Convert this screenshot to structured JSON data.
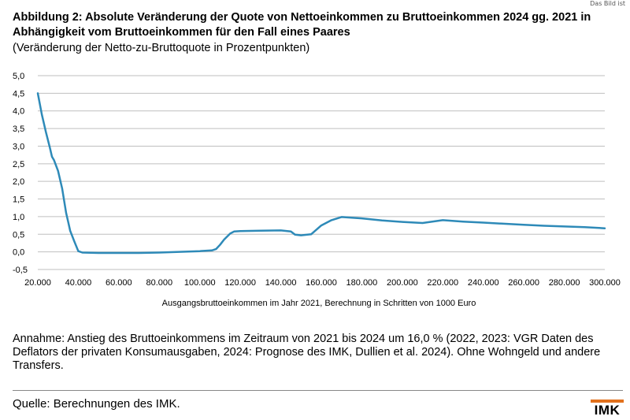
{
  "corner_mark": "Das Bild ist",
  "header": {
    "title": "Abbildung 2: Absolute Veränderung der Quote von Nettoeinkommen zu Bruttoeinkommen 2024 gg. 2021 in Abhängigkeit vom Bruttoeinkommen für den Fall eines Paares",
    "subtitle": "(Veränderung der Netto-zu-Bruttoquote in Prozentpunkten)"
  },
  "note": "Annahme: Anstieg des Bruttoeinkommens im Zeitraum von 2021 bis 2024 um 16,0 % (2022, 2023: VGR Daten des Deflators der privaten Konsumausgaben, 2024: Prognose des IMK, Dullien et al. 2024). Ohne Wohngeld und andere Transfers.",
  "source": "Quelle: Berechnungen des IMK.",
  "logo": {
    "text": "IMK",
    "accent_color": "#e2711d"
  },
  "chart_data": {
    "type": "line",
    "title": "",
    "xlabel": "Ausgangsbruttoeinkommen im Jahr 2021, Berechnung in Schritten von 1000 Euro",
    "ylabel": "",
    "xlim": [
      20000,
      300000
    ],
    "ylim": [
      -0.5,
      5.0
    ],
    "grid": "horizontal",
    "legend": "none",
    "line_color": "#2e8ab8",
    "y_ticks": [
      5.0,
      4.5,
      4.0,
      3.5,
      3.0,
      2.5,
      2.0,
      1.5,
      1.0,
      0.5,
      0.0,
      -0.5
    ],
    "y_tick_labels": [
      "5,0",
      "4,5",
      "4,0",
      "3,5",
      "3,0",
      "2,5",
      "2,0",
      "1,5",
      "1,0",
      "0,5",
      "0,0",
      "-0,5"
    ],
    "x_ticks": [
      20000,
      40000,
      60000,
      80000,
      100000,
      120000,
      140000,
      160000,
      180000,
      200000,
      220000,
      240000,
      260000,
      280000,
      300000
    ],
    "x_tick_labels": [
      "20.000",
      "40.000",
      "60.000",
      "80.000",
      "100.000",
      "120.000",
      "140.000",
      "160.000",
      "180.000",
      "200.000",
      "220.000",
      "240.000",
      "260.000",
      "280.000",
      "300.000"
    ],
    "series": [
      {
        "x": [
          20000,
          22000,
          24000,
          26000,
          27000,
          28000,
          30000,
          32000,
          34000,
          35000,
          36000,
          38000,
          40000,
          42000,
          50000,
          60000,
          70000,
          80000,
          90000,
          100000,
          106000,
          108000,
          110000,
          112000,
          115000,
          117000,
          120000,
          130000,
          140000,
          145000,
          147000,
          150000,
          155000,
          160000,
          165000,
          170000,
          180000,
          190000,
          200000,
          210000,
          220000,
          230000,
          240000,
          250000,
          260000,
          270000,
          280000,
          290000,
          300000
        ],
        "y": [
          4.5,
          3.9,
          3.4,
          2.95,
          2.7,
          2.6,
          2.3,
          1.8,
          1.1,
          0.85,
          0.6,
          0.3,
          0.02,
          -0.02,
          -0.03,
          -0.03,
          -0.03,
          -0.02,
          0.0,
          0.02,
          0.04,
          0.08,
          0.2,
          0.35,
          0.52,
          0.58,
          0.59,
          0.6,
          0.61,
          0.58,
          0.49,
          0.47,
          0.5,
          0.75,
          0.9,
          0.99,
          0.95,
          0.89,
          0.85,
          0.82,
          0.9,
          0.86,
          0.83,
          0.8,
          0.77,
          0.74,
          0.72,
          0.7,
          0.67
        ]
      }
    ]
  }
}
